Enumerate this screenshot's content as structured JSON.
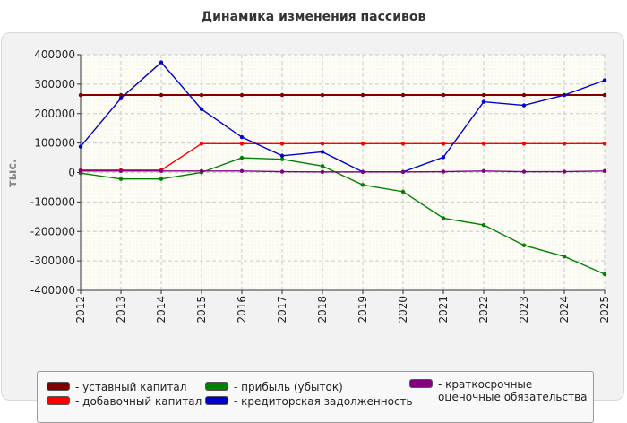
{
  "chart_data": {
    "type": "line",
    "title": "Динамика изменения пассивов",
    "xlabel": "",
    "ylabel": "тыс.",
    "ylim": [
      -400000,
      400000
    ],
    "yticks": [
      400000,
      300000,
      200000,
      100000,
      0,
      -100000,
      -200000,
      -300000,
      -400000
    ],
    "ytick_labels": [
      "400000",
      "300000",
      "200000",
      "100000",
      "0",
      "-100000",
      "-200000",
      "-300000",
      "-400000"
    ],
    "categories": [
      "2012",
      "2013",
      "2014",
      "2015",
      "2016",
      "2017",
      "2018",
      "2019",
      "2020",
      "2021",
      "2022",
      "2023",
      "2024",
      "2025"
    ],
    "grid": true,
    "legend_position": "bottom",
    "series": [
      {
        "name": "- уставный капитал",
        "color": "#800000",
        "values": [
          263000,
          263000,
          263000,
          263000,
          263000,
          263000,
          263000,
          263000,
          263000,
          263000,
          263000,
          263000,
          263000,
          263000
        ]
      },
      {
        "name": "- добавочный капитал",
        "color": "#ff0000",
        "values": [
          8000,
          8000,
          8000,
          98000,
          98000,
          98000,
          98000,
          98000,
          98000,
          98000,
          98000,
          98000,
          98000,
          98000
        ]
      },
      {
        "name": "- прибыль (убыток)",
        "color": "#008000",
        "values": [
          -2000,
          -22000,
          -22000,
          0,
          50000,
          45000,
          22000,
          -42000,
          -65000,
          -155000,
          -178000,
          -247000,
          -285000,
          -345000
        ]
      },
      {
        "name": "- кредиторская задолженность",
        "color": "#0000cc",
        "values": [
          88000,
          252000,
          374000,
          215000,
          120000,
          57000,
          70000,
          2000,
          2000,
          52000,
          240000,
          228000,
          263000,
          313000
        ]
      },
      {
        "name": "- краткосрочные оценочные обязательства",
        "color": "#800080",
        "values": [
          5000,
          5000,
          5000,
          5000,
          5000,
          3000,
          2000,
          2000,
          2000,
          3000,
          5000,
          3000,
          3000,
          5000
        ]
      }
    ]
  }
}
